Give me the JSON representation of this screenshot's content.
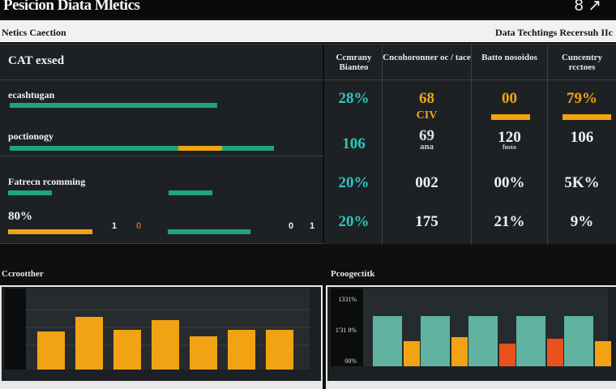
{
  "header": {
    "title": "Pesicion Diata Mletics",
    "icons_text": "8 ↗",
    "icons": [
      "circle-icon",
      "arrow-icon"
    ]
  },
  "subheader": {
    "left": "Netics Caection",
    "right": "Data Techtings Recersuh IIc"
  },
  "metrics": [
    {
      "label": "CAT exsed",
      "numbers": []
    },
    {
      "label": "ecashtugan",
      "numbers": []
    },
    {
      "label": "poctionogy",
      "numbers": []
    },
    {
      "label": "Fatrecn rcomming",
      "numbers": []
    },
    {
      "label": "80%",
      "numbers": [
        "1",
        "0",
        "0",
        "1"
      ]
    }
  ],
  "columns": [
    {
      "header": "Ccmrany Bianteo",
      "cells": [
        {
          "value": "28%",
          "sub": ""
        },
        {
          "value": "106",
          "sub": ""
        },
        {
          "value": "20%",
          "sub": ""
        },
        {
          "value": "20%",
          "sub": ""
        }
      ]
    },
    {
      "header": "Cncohoronner oc / tace",
      "cells": [
        {
          "value": "68",
          "sub": "CIV"
        },
        {
          "value": "69",
          "sub": "ana"
        },
        {
          "value": "002",
          "sub": ""
        },
        {
          "value": "175",
          "sub": ""
        }
      ]
    },
    {
      "header": "Batto nosoidos",
      "cells": [
        {
          "value": "00",
          "sub": ""
        },
        {
          "value": "120",
          "sub": "fnsto"
        },
        {
          "value": "00%",
          "sub": ""
        },
        {
          "value": "21%",
          "sub": ""
        }
      ]
    },
    {
      "header": "Cuncentry rcctoes",
      "cells": [
        {
          "value": "79%",
          "sub": ""
        },
        {
          "value": "106",
          "sub": ""
        },
        {
          "value": "5K%",
          "sub": ""
        },
        {
          "value": "9%",
          "sub": ""
        }
      ]
    }
  ],
  "colors": {
    "green": "#1fa77a",
    "orange": "#f2a313",
    "teal": "#2ec6c0",
    "red": "#e8521a",
    "teal_bar": "#5fb3a0"
  },
  "charts": {
    "left_label": "Ccrootther",
    "right_label": "Pcoogectitk",
    "right_ticks": [
      "1331%",
      "1'31 8%",
      "00%"
    ]
  },
  "chart_data": [
    {
      "type": "bar",
      "title": "",
      "series": [
        {
          "values": [
            47,
            65,
            49,
            61,
            41,
            49,
            49
          ]
        }
      ]
    },
    {
      "type": "bar",
      "title": "",
      "series": [
        {
          "values": [
            62,
            62,
            62,
            62,
            62
          ]
        },
        {
          "values": [
            31,
            36,
            28,
            34,
            31
          ]
        }
      ]
    }
  ]
}
